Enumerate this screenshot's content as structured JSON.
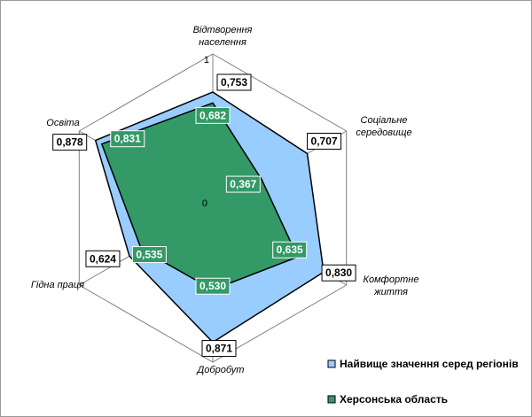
{
  "chart_data": {
    "type": "radar",
    "title": "",
    "axes": [
      "Відтворення населення",
      "Соціальне середовище",
      "Комфортне життя",
      "Добробут",
      "Гідна праця",
      "Освіта"
    ],
    "axis_label_lines": [
      [
        "Відтворення",
        "населення"
      ],
      [
        "Соціальне",
        "середовище"
      ],
      [
        "Комфортне",
        "життя"
      ],
      [
        "Добробут"
      ],
      [
        "Гідна праця"
      ],
      [
        "Освіта"
      ]
    ],
    "rmin": 0,
    "rmax": 1,
    "tick_labels": {
      "min": "0",
      "max": "1"
    },
    "grid": true,
    "legend_position": "bottom-right",
    "series": [
      {
        "name": "Найвище значення серед регіонів",
        "values": [
          0.753,
          0.707,
          0.83,
          0.871,
          0.624,
          0.878
        ],
        "labels": [
          "0,753",
          "0,707",
          "0,830",
          "0,871",
          "0,624",
          "0,878"
        ],
        "color": "#99ccff"
      },
      {
        "name": "Херсонська область",
        "values": [
          0.682,
          0.367,
          0.635,
          0.53,
          0.535,
          0.831
        ],
        "labels": [
          "0,682",
          "0,367",
          "0,635",
          "0,530",
          "0,535",
          "0,831"
        ],
        "color": "#339966"
      }
    ]
  }
}
